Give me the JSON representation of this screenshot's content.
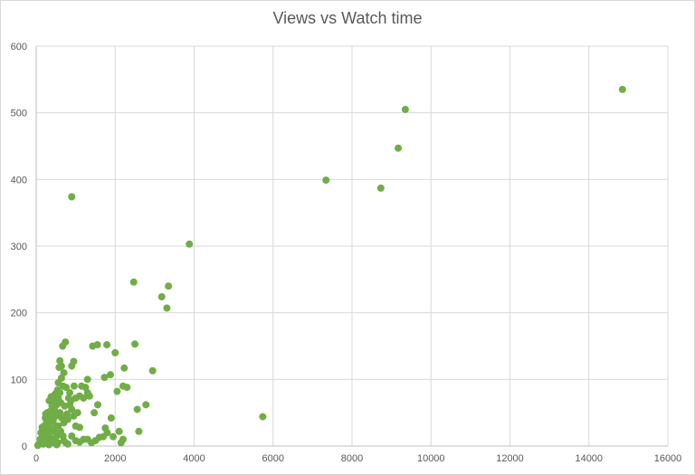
{
  "chart_data": {
    "type": "scatter",
    "title": "Views vs Watch time",
    "xlabel": "",
    "ylabel": "",
    "xlim": [
      0,
      16000
    ],
    "ylim": [
      0,
      600
    ],
    "x_ticks": [
      "0",
      "2000",
      "4000",
      "6000",
      "8000",
      "10000",
      "12000",
      "14000",
      "16000"
    ],
    "y_ticks": [
      "0",
      "100",
      "200",
      "300",
      "400",
      "500",
      "600"
    ],
    "grid": true,
    "legend": "none",
    "marker_color": "#70ad47",
    "series": [
      {
        "points": [
          [
            14850,
            535
          ],
          [
            9350,
            505
          ],
          [
            9170,
            447
          ],
          [
            8730,
            387
          ],
          [
            7340,
            399
          ],
          [
            5740,
            44
          ],
          [
            3880,
            303
          ],
          [
            3350,
            240
          ],
          [
            3180,
            224
          ],
          [
            3310,
            207
          ],
          [
            2470,
            246
          ],
          [
            900,
            374
          ],
          [
            2500,
            153
          ],
          [
            2950,
            113
          ],
          [
            2780,
            62
          ],
          [
            2560,
            55
          ],
          [
            2600,
            22
          ],
          [
            2230,
            117
          ],
          [
            2300,
            88
          ],
          [
            2200,
            90
          ],
          [
            2050,
            82
          ],
          [
            2000,
            140
          ],
          [
            1790,
            152
          ],
          [
            1880,
            107
          ],
          [
            1730,
            103
          ],
          [
            1900,
            42
          ],
          [
            1750,
            27
          ],
          [
            1800,
            20
          ],
          [
            1950,
            14
          ],
          [
            2100,
            22
          ],
          [
            2200,
            10
          ],
          [
            2150,
            5
          ],
          [
            1550,
            152
          ],
          [
            1430,
            150
          ],
          [
            1560,
            62
          ],
          [
            1470,
            50
          ],
          [
            1600,
            13
          ],
          [
            1700,
            14
          ],
          [
            1500,
            8
          ],
          [
            1300,
            100
          ],
          [
            1250,
            88
          ],
          [
            1300,
            80
          ],
          [
            1150,
            90
          ],
          [
            1100,
            75
          ],
          [
            1200,
            72
          ],
          [
            1350,
            75
          ],
          [
            1050,
            50
          ],
          [
            1100,
            28
          ],
          [
            1200,
            10
          ],
          [
            1300,
            10
          ],
          [
            1400,
            5
          ],
          [
            950,
            127
          ],
          [
            900,
            120
          ],
          [
            960,
            90
          ],
          [
            1000,
            72
          ],
          [
            850,
            80
          ],
          [
            900,
            55
          ],
          [
            950,
            45
          ],
          [
            800,
            40
          ],
          [
            850,
            62
          ],
          [
            1000,
            30
          ],
          [
            900,
            15
          ],
          [
            1000,
            8
          ],
          [
            740,
            156
          ],
          [
            670,
            150
          ],
          [
            600,
            128
          ],
          [
            580,
            118
          ],
          [
            640,
            120
          ],
          [
            700,
            110
          ],
          [
            640,
            102
          ],
          [
            680,
            90
          ],
          [
            600,
            80
          ],
          [
            620,
            65
          ],
          [
            560,
            72
          ],
          [
            600,
            50
          ],
          [
            650,
            42
          ],
          [
            700,
            35
          ],
          [
            560,
            30
          ],
          [
            620,
            22
          ],
          [
            680,
            15
          ],
          [
            700,
            8
          ],
          [
            750,
            5
          ],
          [
            480,
            78
          ],
          [
            520,
            62
          ],
          [
            460,
            55
          ],
          [
            500,
            45
          ],
          [
            430,
            38
          ],
          [
            500,
            30
          ],
          [
            450,
            22
          ],
          [
            520,
            15
          ],
          [
            480,
            8
          ],
          [
            550,
            5
          ],
          [
            380,
            74
          ],
          [
            330,
            68
          ],
          [
            400,
            60
          ],
          [
            350,
            52
          ],
          [
            300,
            45
          ],
          [
            380,
            38
          ],
          [
            330,
            30
          ],
          [
            400,
            22
          ],
          [
            300,
            18
          ],
          [
            360,
            12
          ],
          [
            420,
            5
          ],
          [
            280,
            50
          ],
          [
            230,
            42
          ],
          [
            260,
            35
          ],
          [
            200,
            30
          ],
          [
            250,
            25
          ],
          [
            210,
            18
          ],
          [
            270,
            12
          ],
          [
            220,
            8
          ],
          [
            250,
            4
          ],
          [
            150,
            28
          ],
          [
            120,
            20
          ],
          [
            160,
            14
          ],
          [
            100,
            10
          ],
          [
            140,
            6
          ],
          [
            90,
            4
          ],
          [
            180,
            3
          ],
          [
            60,
            2
          ],
          [
            40,
            1
          ],
          [
            320,
            2
          ],
          [
            520,
            2
          ],
          [
            800,
            3
          ],
          [
            1100,
            6
          ],
          [
            760,
            88
          ],
          [
            820,
            72
          ],
          [
            880,
            68
          ],
          [
            720,
            60
          ],
          [
            780,
            48
          ],
          [
            560,
            95
          ],
          [
            540,
            84
          ],
          [
            460,
            70
          ],
          [
            420,
            66
          ],
          [
            380,
            48
          ],
          [
            340,
            40
          ],
          [
            280,
            35
          ],
          [
            240,
            48
          ],
          [
            300,
            25
          ],
          [
            200,
            22
          ]
        ]
      }
    ]
  }
}
